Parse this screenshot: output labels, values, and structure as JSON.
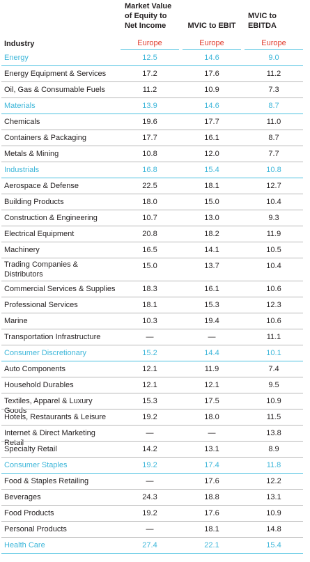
{
  "header": {
    "industry": "Industry",
    "col1": "Market Value of Equity to Net Income",
    "col2": "MVIC to EBIT",
    "col3": "MVIC to EBITDA",
    "region1": "Europe",
    "region2": "Europe",
    "region3": "Europe"
  },
  "rows": [
    {
      "name": "Energy",
      "v1": "12.5",
      "v2": "14.6",
      "v3": "9.0",
      "sector": true
    },
    {
      "name": "Energy Equipment & Services",
      "v1": "17.2",
      "v2": "17.6",
      "v3": "11.2"
    },
    {
      "name": "Oil, Gas & Consumable Fuels",
      "v1": "11.2",
      "v2": "10.9",
      "v3": "7.3"
    },
    {
      "name": "Materials",
      "v1": "13.9",
      "v2": "14.6",
      "v3": "8.7",
      "sector": true
    },
    {
      "name": "Chemicals",
      "v1": "19.6",
      "v2": "17.7",
      "v3": "11.0"
    },
    {
      "name": "Containers & Packaging",
      "v1": "17.7",
      "v2": "16.1",
      "v3": "8.7"
    },
    {
      "name": "Metals & Mining",
      "v1": "10.8",
      "v2": "12.0",
      "v3": "7.7"
    },
    {
      "name": "Industrials",
      "v1": "16.8",
      "v2": "15.4",
      "v3": "10.8",
      "sector": true
    },
    {
      "name": "Aerospace & Defense",
      "v1": "22.5",
      "v2": "18.1",
      "v3": "12.7"
    },
    {
      "name": "Building Products",
      "v1": "18.0",
      "v2": "15.0",
      "v3": "10.4"
    },
    {
      "name": "Construction & Engineering",
      "v1": "10.7",
      "v2": "13.0",
      "v3": "9.3"
    },
    {
      "name": "Electrical Equipment",
      "v1": "20.8",
      "v2": "18.2",
      "v3": "11.9"
    },
    {
      "name": "Machinery",
      "v1": "16.5",
      "v2": "14.1",
      "v3": "10.5"
    },
    {
      "name": "Trading Companies & Distributors",
      "v1": "15.0",
      "v2": "13.7",
      "v3": "10.4",
      "tall": true
    },
    {
      "name": "Commercial Services & Supplies",
      "v1": "18.3",
      "v2": "16.1",
      "v3": "10.6"
    },
    {
      "name": "Professional Services",
      "v1": "18.1",
      "v2": "15.3",
      "v3": "12.3"
    },
    {
      "name": "Marine",
      "v1": "10.3",
      "v2": "19.4",
      "v3": "10.6"
    },
    {
      "name": "Transportation Infrastructure",
      "v1": "—",
      "v2": "—",
      "v3": "11.1"
    },
    {
      "name": "Consumer Discretionary",
      "v1": "15.2",
      "v2": "14.4",
      "v3": "10.1",
      "sector": true
    },
    {
      "name": "Auto Components",
      "v1": "12.1",
      "v2": "11.9",
      "v3": "7.4"
    },
    {
      "name": "Household Durables",
      "v1": "12.1",
      "v2": "12.1",
      "v3": "9.5"
    },
    {
      "name": "Textiles, Apparel & Luxury Goods",
      "v1": "15.3",
      "v2": "17.5",
      "v3": "10.9"
    },
    {
      "name": "Hotels, Restaurants & Leisure",
      "v1": "19.2",
      "v2": "18.0",
      "v3": "11.5"
    },
    {
      "name": "Internet & Direct Marketing Retail",
      "v1": "—",
      "v2": "—",
      "v3": "13.8"
    },
    {
      "name": "Specialty Retail",
      "v1": "14.2",
      "v2": "13.1",
      "v3": "8.9"
    },
    {
      "name": "Consumer Staples",
      "v1": "19.2",
      "v2": "17.4",
      "v3": "11.8",
      "sector": true
    },
    {
      "name": "Food & Staples Retailing",
      "v1": "—",
      "v2": "17.6",
      "v3": "12.2"
    },
    {
      "name": "Beverages",
      "v1": "24.3",
      "v2": "18.8",
      "v3": "13.1"
    },
    {
      "name": "Food Products",
      "v1": "19.2",
      "v2": "17.6",
      "v3": "10.9"
    },
    {
      "name": "Personal Products",
      "v1": "—",
      "v2": "18.1",
      "v3": "14.8"
    },
    {
      "name": "Health Care",
      "v1": "27.4",
      "v2": "22.1",
      "v3": "15.4",
      "sector": true
    }
  ]
}
